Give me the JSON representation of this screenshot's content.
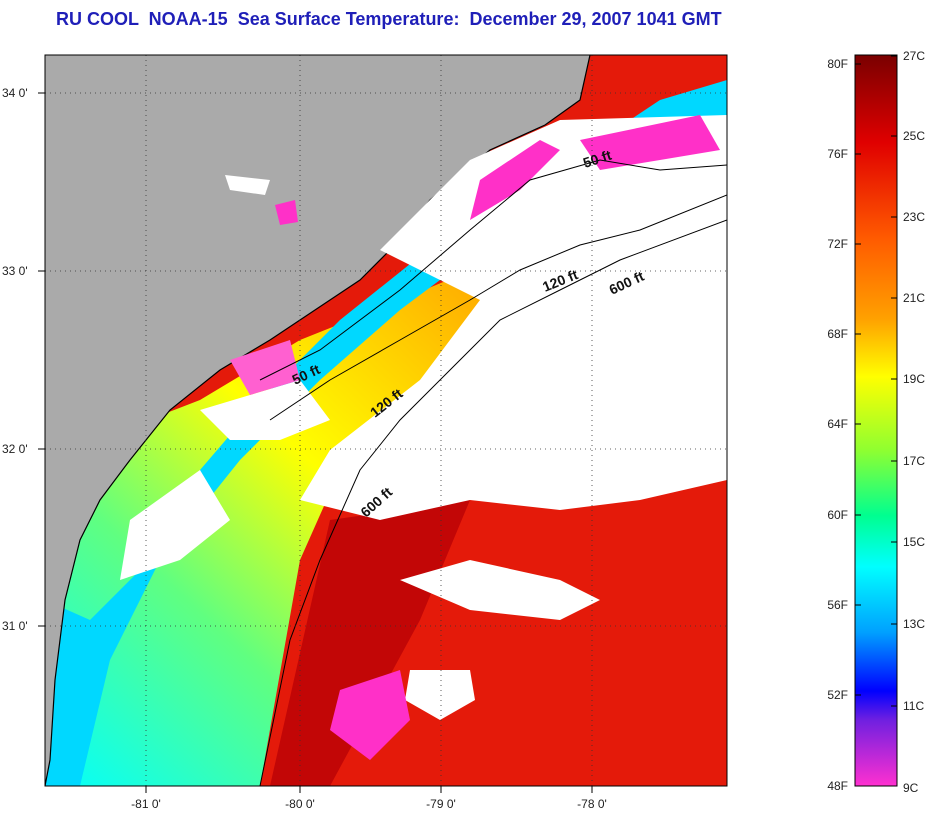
{
  "title": "RU COOL  NOAA-15  Sea Surface Temperature:  December 29, 2007 1041 GMT",
  "map": {
    "lat_ticks": [
      "34 0'",
      "33 0'",
      "32 0'",
      "31 0'"
    ],
    "lon_ticks": [
      "-81 0'",
      "-80 0'",
      "-79 0'",
      "-78 0'"
    ],
    "contour_labels": [
      "50 ft",
      "50 ft",
      "120 ft",
      "120 ft",
      "600 ft",
      "600 ft"
    ]
  },
  "colorbar": {
    "fahrenheit_labels": [
      "80F",
      "76F",
      "72F",
      "68F",
      "64F",
      "60F",
      "56F",
      "52F",
      "48F"
    ],
    "celsius_labels": [
      "27C",
      "25C",
      "23C",
      "21C",
      "19C",
      "17C",
      "15C",
      "13C",
      "11C",
      "9C"
    ]
  },
  "colors": {
    "title": "#1f1fb8",
    "land": "#aaaaaa",
    "cloud": "#ffffff",
    "warm": "#e41a0a",
    "cold": "#ff30c8"
  }
}
